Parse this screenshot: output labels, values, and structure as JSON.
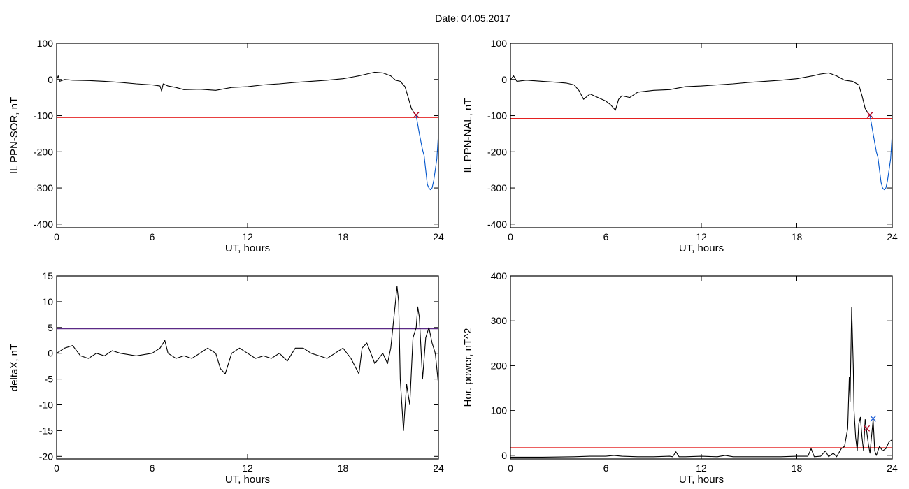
{
  "page": {
    "title": "Date:  04.05.2017"
  },
  "chart_data": [
    {
      "type": "line",
      "id": "sor",
      "xlabel": "UT, hours",
      "ylabel": "IL PPN-SOR, nT",
      "xlim": [
        0,
        24
      ],
      "ylim": [
        -410,
        100
      ],
      "xticks": [
        0,
        6,
        12,
        18,
        24
      ],
      "yticks": [
        -400,
        -300,
        -200,
        -100,
        0,
        100
      ],
      "threshold": {
        "value": -105,
        "color": "#e00000"
      },
      "markers": [
        {
          "x": 22.6,
          "y": -98,
          "color": "#b00020",
          "symbol": "x"
        }
      ],
      "series": [
        {
          "color": "#000000",
          "points": [
            [
              0,
              0
            ],
            [
              0.1,
              10
            ],
            [
              0.2,
              -5
            ],
            [
              0.5,
              0
            ],
            [
              1,
              -2
            ],
            [
              2,
              -3
            ],
            [
              3,
              -5
            ],
            [
              4,
              -8
            ],
            [
              5,
              -12
            ],
            [
              6,
              -15
            ],
            [
              6.5,
              -18
            ],
            [
              6.6,
              -32
            ],
            [
              6.7,
              -12
            ],
            [
              7,
              -18
            ],
            [
              7.5,
              -22
            ],
            [
              8,
              -28
            ],
            [
              9,
              -27
            ],
            [
              10,
              -30
            ],
            [
              11,
              -22
            ],
            [
              12,
              -20
            ],
            [
              13,
              -15
            ],
            [
              14,
              -12
            ],
            [
              15,
              -8
            ],
            [
              16,
              -5
            ],
            [
              17,
              -2
            ],
            [
              18,
              2
            ],
            [
              19,
              10
            ],
            [
              19.5,
              15
            ],
            [
              20,
              20
            ],
            [
              20.5,
              18
            ],
            [
              21,
              10
            ],
            [
              21.3,
              -2
            ],
            [
              21.6,
              -5
            ],
            [
              21.9,
              -20
            ],
            [
              22.1,
              -50
            ],
            [
              22.3,
              -80
            ],
            [
              22.5,
              -95
            ]
          ]
        },
        {
          "color": "#0055cc",
          "points": [
            [
              22.6,
              -100
            ],
            [
              22.8,
              -150
            ],
            [
              23.0,
              -195
            ],
            [
              23.1,
              -210
            ],
            [
              23.2,
              -250
            ],
            [
              23.3,
              -290
            ],
            [
              23.4,
              -300
            ],
            [
              23.5,
              -305
            ],
            [
              23.6,
              -300
            ],
            [
              23.7,
              -280
            ],
            [
              23.8,
              -250
            ],
            [
              23.9,
              -220
            ],
            [
              24.0,
              -150
            ]
          ]
        }
      ]
    },
    {
      "type": "line",
      "id": "nal",
      "xlabel": "UT, hours",
      "ylabel": "IL PPN-NAL, nT",
      "xlim": [
        0,
        24
      ],
      "ylim": [
        -410,
        100
      ],
      "xticks": [
        0,
        6,
        12,
        18,
        24
      ],
      "yticks": [
        -400,
        -300,
        -200,
        -100,
        0,
        100
      ],
      "threshold": {
        "value": -108,
        "color": "#e00000"
      },
      "markers": [
        {
          "x": 22.6,
          "y": -98,
          "color": "#b00020",
          "symbol": "x"
        }
      ],
      "series": [
        {
          "color": "#000000",
          "points": [
            [
              0,
              0
            ],
            [
              0.2,
              10
            ],
            [
              0.4,
              -5
            ],
            [
              1,
              -2
            ],
            [
              2,
              -5
            ],
            [
              3,
              -8
            ],
            [
              3.5,
              -10
            ],
            [
              4,
              -15
            ],
            [
              4.3,
              -30
            ],
            [
              4.6,
              -55
            ],
            [
              5,
              -40
            ],
            [
              5.5,
              -50
            ],
            [
              6,
              -60
            ],
            [
              6.3,
              -70
            ],
            [
              6.6,
              -85
            ],
            [
              6.8,
              -55
            ],
            [
              7,
              -45
            ],
            [
              7.5,
              -50
            ],
            [
              8,
              -35
            ],
            [
              9,
              -30
            ],
            [
              10,
              -28
            ],
            [
              11,
              -20
            ],
            [
              12,
              -18
            ],
            [
              13,
              -15
            ],
            [
              14,
              -12
            ],
            [
              15,
              -8
            ],
            [
              16,
              -5
            ],
            [
              17,
              -2
            ],
            [
              18,
              2
            ],
            [
              19,
              10
            ],
            [
              19.5,
              15
            ],
            [
              20,
              18
            ],
            [
              20.5,
              10
            ],
            [
              21,
              -2
            ],
            [
              21.5,
              -5
            ],
            [
              21.9,
              -15
            ],
            [
              22.1,
              -45
            ],
            [
              22.3,
              -80
            ],
            [
              22.5,
              -95
            ]
          ]
        },
        {
          "color": "#0055cc",
          "points": [
            [
              22.6,
              -100
            ],
            [
              22.8,
              -150
            ],
            [
              23.0,
              -200
            ],
            [
              23.1,
              -215
            ],
            [
              23.2,
              -250
            ],
            [
              23.3,
              -285
            ],
            [
              23.4,
              -300
            ],
            [
              23.5,
              -305
            ],
            [
              23.6,
              -300
            ],
            [
              23.7,
              -280
            ],
            [
              23.8,
              -250
            ],
            [
              23.9,
              -220
            ],
            [
              24.0,
              -150
            ]
          ]
        }
      ]
    },
    {
      "type": "line",
      "id": "deltax",
      "xlabel": "UT, hours",
      "ylabel": "deltaX, nT",
      "xlim": [
        0,
        24
      ],
      "ylim": [
        -20.5,
        15
      ],
      "xticks": [
        0,
        6,
        12,
        18,
        24
      ],
      "yticks": [
        -20,
        -15,
        -10,
        -5,
        0,
        5,
        10,
        15
      ],
      "threshold": {
        "value": 4.8,
        "color": "#5b2a86"
      },
      "markers": [],
      "series": [
        {
          "color": "#000000",
          "points": [
            [
              0,
              0
            ],
            [
              0.5,
              1
            ],
            [
              1,
              1.5
            ],
            [
              1.5,
              -0.5
            ],
            [
              2,
              -1
            ],
            [
              2.5,
              0
            ],
            [
              3,
              -0.5
            ],
            [
              3.5,
              0.5
            ],
            [
              4,
              0
            ],
            [
              5,
              -0.5
            ],
            [
              6,
              0
            ],
            [
              6.5,
              1
            ],
            [
              6.8,
              2.5
            ],
            [
              7,
              0
            ],
            [
              7.5,
              -1
            ],
            [
              8,
              -0.5
            ],
            [
              8.5,
              -1
            ],
            [
              9,
              0
            ],
            [
              9.5,
              1
            ],
            [
              10,
              0
            ],
            [
              10.3,
              -3
            ],
            [
              10.6,
              -4
            ],
            [
              11,
              0
            ],
            [
              11.5,
              1
            ],
            [
              12,
              0
            ],
            [
              12.5,
              -1
            ],
            [
              13,
              -0.5
            ],
            [
              13.5,
              -1
            ],
            [
              14,
              0
            ],
            [
              14.5,
              -1.5
            ],
            [
              15,
              1
            ],
            [
              15.5,
              1
            ],
            [
              16,
              0
            ],
            [
              16.5,
              -0.5
            ],
            [
              17,
              -1
            ],
            [
              17.5,
              0
            ],
            [
              18,
              1
            ],
            [
              18.5,
              -1
            ],
            [
              19,
              -4
            ],
            [
              19.2,
              1
            ],
            [
              19.5,
              2
            ],
            [
              20,
              -2
            ],
            [
              20.5,
              0
            ],
            [
              20.8,
              -2
            ],
            [
              21,
              1
            ],
            [
              21.3,
              10
            ],
            [
              21.4,
              13
            ],
            [
              21.5,
              10
            ],
            [
              21.6,
              -5
            ],
            [
              21.8,
              -15
            ],
            [
              22,
              -6
            ],
            [
              22.2,
              -10
            ],
            [
              22.4,
              3
            ],
            [
              22.6,
              5
            ],
            [
              22.7,
              9
            ],
            [
              22.8,
              7
            ],
            [
              23,
              -5
            ],
            [
              23.2,
              3
            ],
            [
              23.4,
              5
            ],
            [
              23.6,
              2
            ],
            [
              23.8,
              0
            ],
            [
              24,
              -6
            ]
          ]
        }
      ]
    },
    {
      "type": "line",
      "id": "power",
      "xlabel": "UT, hours",
      "ylabel": "Hor. power, nT^2",
      "xlim": [
        0,
        24
      ],
      "ylim": [
        -8,
        400
      ],
      "xticks": [
        0,
        6,
        12,
        18,
        24
      ],
      "yticks": [
        0,
        100,
        200,
        300,
        400
      ],
      "threshold": {
        "value": 17,
        "color": "#e00000"
      },
      "markers": [
        {
          "x": 22.4,
          "y": 60,
          "color": "#b00020",
          "symbol": "x"
        },
        {
          "x": 22.8,
          "y": 82,
          "color": "#1f5fd6",
          "symbol": "x"
        }
      ],
      "series": [
        {
          "color": "#000000",
          "points": [
            [
              0,
              -4
            ],
            [
              2,
              -4
            ],
            [
              4,
              -3
            ],
            [
              5,
              -2
            ],
            [
              6,
              -2
            ],
            [
              6.5,
              0
            ],
            [
              7,
              -2
            ],
            [
              8,
              -3
            ],
            [
              9,
              -3
            ],
            [
              10,
              -2
            ],
            [
              10.2,
              -3
            ],
            [
              10.4,
              8
            ],
            [
              10.6,
              -3
            ],
            [
              11,
              -3
            ],
            [
              12,
              -2
            ],
            [
              13,
              -3
            ],
            [
              13.5,
              0
            ],
            [
              14,
              -3
            ],
            [
              15,
              -3
            ],
            [
              16,
              -3
            ],
            [
              17,
              -3
            ],
            [
              18,
              -2
            ],
            [
              18.7,
              -2
            ],
            [
              18.9,
              15
            ],
            [
              19.1,
              -3
            ],
            [
              19.5,
              -2
            ],
            [
              19.8,
              10
            ],
            [
              20,
              -3
            ],
            [
              20.3,
              5
            ],
            [
              20.5,
              -3
            ],
            [
              20.8,
              15
            ],
            [
              21,
              20
            ],
            [
              21.2,
              60
            ],
            [
              21.3,
              175
            ],
            [
              21.35,
              120
            ],
            [
              21.45,
              330
            ],
            [
              21.55,
              200
            ],
            [
              21.6,
              100
            ],
            [
              21.7,
              40
            ],
            [
              21.8,
              10
            ],
            [
              21.9,
              70
            ],
            [
              22,
              85
            ],
            [
              22.1,
              40
            ],
            [
              22.2,
              10
            ],
            [
              22.3,
              80
            ],
            [
              22.5,
              25
            ],
            [
              22.6,
              5
            ],
            [
              22.8,
              80
            ],
            [
              22.9,
              10
            ],
            [
              23,
              0
            ],
            [
              23.2,
              20
            ],
            [
              23.4,
              10
            ],
            [
              23.6,
              15
            ],
            [
              23.8,
              30
            ],
            [
              24,
              35
            ]
          ]
        }
      ]
    }
  ]
}
